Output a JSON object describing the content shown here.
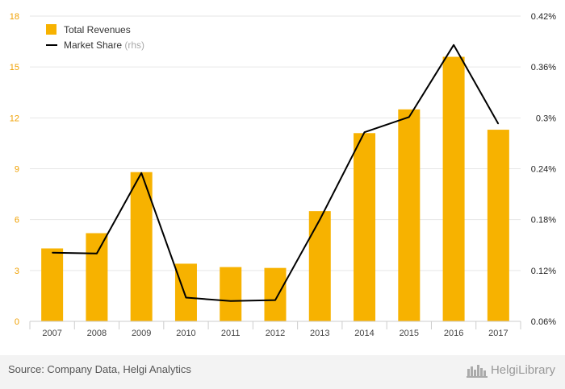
{
  "chart_data": {
    "type": "bar",
    "categories": [
      "2007",
      "2008",
      "2009",
      "2010",
      "2011",
      "2012",
      "2013",
      "2014",
      "2015",
      "2016",
      "2017"
    ],
    "series": [
      {
        "name": "Total Revenues",
        "type": "bar",
        "axis": "left",
        "color": "#f7b200",
        "values": [
          4.3,
          5.2,
          8.8,
          3.4,
          3.2,
          3.15,
          6.5,
          11.1,
          12.5,
          15.6,
          11.3
        ]
      },
      {
        "name": "Market Share",
        "type": "line",
        "axis": "right",
        "color": "#000000",
        "values": [
          0.141,
          0.14,
          0.235,
          0.088,
          0.084,
          0.085,
          0.18,
          0.283,
          0.301,
          0.386,
          0.293
        ]
      }
    ],
    "y_left": {
      "ylim": [
        0,
        18
      ],
      "ticks": [
        "0",
        "3",
        "6",
        "9",
        "12",
        "15",
        "18"
      ]
    },
    "y_right": {
      "ylim": [
        0.06,
        0.42
      ],
      "ticks": [
        "0.06%",
        "0.12%",
        "0.18%",
        "0.24%",
        "0.3%",
        "0.36%",
        "0.42%"
      ]
    },
    "legend": {
      "position": "top-left",
      "entries": [
        {
          "label": "Total Revenues",
          "suffix": ""
        },
        {
          "label": "Market Share",
          "suffix": "(rhs)"
        }
      ]
    },
    "grid": true
  },
  "footer": {
    "source": "Source: Company Data, Helgi Analytics",
    "brand": "HelgiLibrary"
  },
  "colors": {
    "bar": "#f7b200",
    "line": "#000000",
    "left_axis_text": "#f0a000",
    "footer_bg": "#f3f3f3"
  }
}
